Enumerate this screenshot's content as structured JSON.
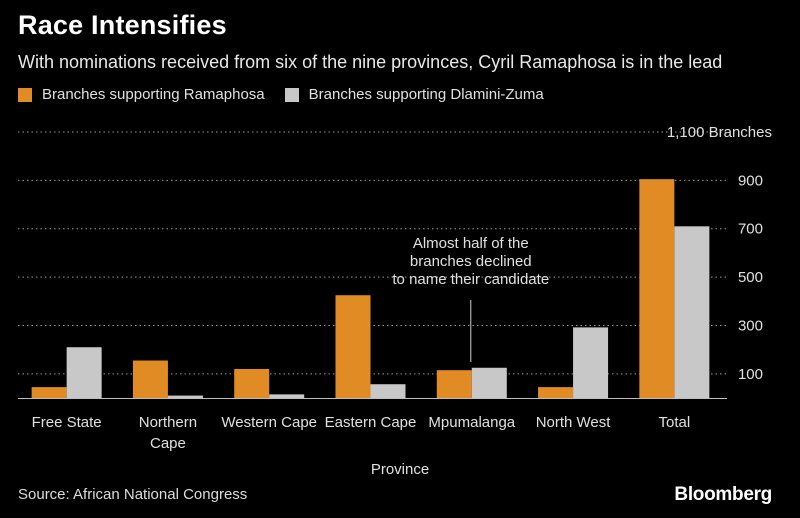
{
  "title": "Race Intensifies",
  "subtitle": "With nominations received from six of the nine provinces, Cyril Ramaphosa is in the lead",
  "source": "Source: African National Congress",
  "brand": "Bloomberg",
  "colors": {
    "ramaphosa": "#e08b23",
    "dlamini_zuma": "#c8c8c8",
    "grid": "#9a9a9a",
    "text": "#e0e0e0"
  },
  "chart_data": {
    "type": "bar",
    "title": "Race Intensifies",
    "subtitle": "With nominations received from six of the nine provinces, Cyril Ramaphosa is in the lead",
    "xlabel": "Province",
    "ylabel": "",
    "y_unit_label": "1,100 Branches",
    "ylim": [
      0,
      1100
    ],
    "yticks": [
      100,
      300,
      500,
      700,
      900,
      1100
    ],
    "ytick_labels": [
      "100",
      "300",
      "500",
      "700",
      "900",
      "1,100 Branches"
    ],
    "y_axis_side": "right",
    "grid": true,
    "legend_position": "top-left",
    "categories": [
      "Free State",
      "Northern Cape",
      "Western Cape",
      "Eastern Cape",
      "Mpumalanga",
      "North West",
      "Total"
    ],
    "category_lines": [
      [
        "Free State"
      ],
      [
        "Northern",
        "Cape"
      ],
      [
        "Western Cape"
      ],
      [
        "Eastern Cape"
      ],
      [
        "Mpumalanga"
      ],
      [
        "North West"
      ],
      [
        "Total"
      ]
    ],
    "series": [
      {
        "name": "Branches supporting Ramaphosa",
        "values": [
          45,
          155,
          120,
          425,
          115,
          45,
          905
        ]
      },
      {
        "name": "Branches supporting Dlamini-Zuma",
        "values": [
          210,
          10,
          15,
          57,
          125,
          292,
          710
        ]
      }
    ],
    "annotation": {
      "category": "Mpumalanga",
      "lines": [
        "Almost half of the",
        "branches declined",
        "to name their candidate"
      ]
    }
  }
}
